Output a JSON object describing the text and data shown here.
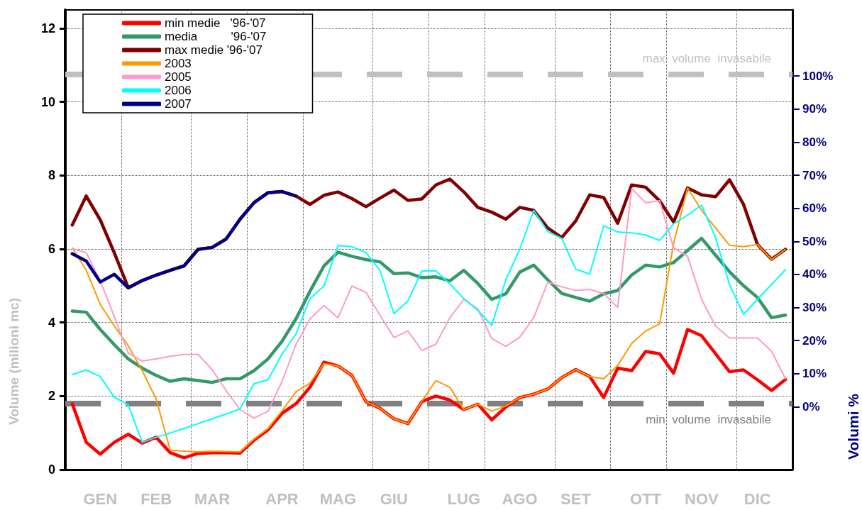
{
  "chart_data": {
    "type": "line",
    "ylabel": "Volume (milioni mc)",
    "y2label": "Volumi %",
    "categories": [
      null,
      null,
      "GEN",
      null,
      null,
      null,
      "FEB",
      null,
      null,
      null,
      "MAR",
      null,
      null,
      null,
      null,
      "APR",
      null,
      null,
      null,
      "MAG",
      null,
      null,
      null,
      "GIU",
      null,
      null,
      null,
      null,
      "LUG",
      null,
      null,
      null,
      "AGO",
      null,
      null,
      null,
      "SET",
      null,
      null,
      null,
      null,
      "OTT",
      null,
      null,
      null,
      "NOV",
      null,
      null,
      null,
      "DIC",
      null,
      null
    ],
    "ylim": [
      0,
      12.5
    ],
    "yticks": [
      0,
      2,
      4,
      6,
      8,
      10,
      12
    ],
    "y2lim": [
      -19,
      120
    ],
    "y2ticks": [
      {
        "value": 0,
        "label": "0%"
      },
      {
        "value": 10,
        "label": "10%"
      },
      {
        "value": 20,
        "label": "20%"
      },
      {
        "value": 30,
        "label": "30%"
      },
      {
        "value": 40,
        "label": "40%"
      },
      {
        "value": 50,
        "label": "50%"
      },
      {
        "value": 60,
        "label": "60%"
      },
      {
        "value": 70,
        "label": "70%"
      },
      {
        "value": 80,
        "label": "80%"
      },
      {
        "value": 90,
        "label": "90%"
      },
      {
        "value": 100,
        "label": "100%"
      }
    ],
    "grid": true,
    "legend": "top left",
    "marker": "none",
    "line_style": "solid",
    "ref_lines": [
      {
        "axis": "y",
        "value": 10.75,
        "label": "max  volume  invasabile",
        "color": "#c0c0c0",
        "line_style": "dashed"
      },
      {
        "axis": "y",
        "value": 1.8,
        "label": "min  volume  invasabile",
        "color": "#808080",
        "line_style": "dashed"
      }
    ],
    "series": [
      {
        "name": "min medie   '96-'07",
        "color": "#ff0000",
        "values": [
          1.79,
          0.74,
          0.42,
          0.74,
          0.96,
          0.72,
          0.88,
          0.46,
          0.32,
          0.44,
          0.46,
          0.46,
          0.45,
          0.8,
          1.08,
          1.53,
          1.79,
          2.24,
          2.92,
          2.82,
          2.56,
          1.85,
          1.67,
          1.38,
          1.25,
          1.85,
          2.0,
          1.89,
          1.63,
          1.78,
          1.35,
          1.7,
          1.96,
          2.05,
          2.19,
          2.5,
          2.72,
          2.53,
          1.96,
          2.76,
          2.69,
          3.21,
          3.15,
          2.62,
          3.81,
          3.64,
          3.15,
          2.66,
          2.71,
          2.44,
          2.15,
          2.45
        ]
      },
      {
        "name": "media          '96-'07",
        "color": "#339966",
        "values": [
          4.31,
          4.28,
          3.81,
          3.4,
          3.01,
          2.76,
          2.56,
          2.4,
          2.47,
          2.42,
          2.37,
          2.47,
          2.47,
          2.69,
          3.01,
          3.49,
          4.1,
          4.85,
          5.54,
          5.91,
          5.8,
          5.71,
          5.65,
          5.33,
          5.35,
          5.22,
          5.24,
          5.13,
          5.42,
          5.06,
          4.63,
          4.78,
          5.37,
          5.56,
          5.16,
          4.79,
          4.68,
          4.58,
          4.78,
          4.87,
          5.29,
          5.56,
          5.51,
          5.63,
          5.96,
          6.29,
          5.83,
          5.38,
          5.0,
          4.68,
          4.13,
          4.2
        ]
      },
      {
        "name": "max medie '96-'07",
        "color": "#800000",
        "values": [
          6.65,
          7.44,
          6.79,
          5.9,
          4.95,
          5.14,
          5.29,
          5.42,
          5.54,
          5.99,
          6.04,
          6.27,
          6.81,
          7.26,
          7.53,
          7.56,
          7.44,
          7.21,
          7.46,
          7.55,
          7.37,
          7.15,
          7.38,
          7.6,
          7.32,
          7.36,
          7.74,
          7.9,
          7.55,
          7.13,
          7.0,
          6.81,
          7.13,
          7.05,
          6.57,
          6.31,
          6.76,
          7.47,
          7.4,
          6.7,
          7.74,
          7.68,
          7.31,
          6.73,
          7.66,
          7.47,
          7.42,
          7.88,
          7.21,
          6.12,
          5.72,
          5.99
        ]
      },
      {
        "name": "2003",
        "color": "#ff9900",
        "values": [
          6.03,
          5.42,
          4.49,
          3.91,
          3.37,
          2.69,
          1.92,
          0.53,
          0.5,
          0.48,
          0.5,
          0.49,
          0.48,
          0.83,
          1.12,
          1.6,
          2.12,
          2.35,
          2.88,
          2.82,
          2.56,
          1.85,
          1.67,
          1.38,
          1.25,
          1.86,
          2.42,
          2.24,
          1.63,
          1.78,
          1.59,
          1.73,
          1.96,
          2.05,
          2.19,
          2.5,
          2.72,
          2.53,
          2.47,
          2.83,
          3.43,
          3.77,
          3.96,
          6.15,
          7.66,
          7.05,
          6.57,
          6.1,
          6.06,
          6.12,
          5.71,
          5.99
        ]
      },
      {
        "name": "2005",
        "color": "#ff99cc",
        "values": [
          6.01,
          5.9,
          5.13,
          4.17,
          3.17,
          2.95,
          3.01,
          3.08,
          3.13,
          3.13,
          2.72,
          2.15,
          1.63,
          1.4,
          1.59,
          2.4,
          3.4,
          4.1,
          4.46,
          4.13,
          4.99,
          4.82,
          4.2,
          3.59,
          3.77,
          3.24,
          3.41,
          4.13,
          4.63,
          4.37,
          3.56,
          3.35,
          3.6,
          4.13,
          5.1,
          4.97,
          4.87,
          4.9,
          4.79,
          4.41,
          7.64,
          7.26,
          7.31,
          6.03,
          5.8,
          4.63,
          3.9,
          3.58,
          3.58,
          3.58,
          3.22,
          2.47
        ]
      },
      {
        "name": "2006",
        "color": "#00ffff",
        "values": [
          2.58,
          2.71,
          2.53,
          1.97,
          1.76,
          0.74,
          0.88,
          0.99,
          1.12,
          1.25,
          1.38,
          1.51,
          1.65,
          2.34,
          2.44,
          3.14,
          3.69,
          4.65,
          4.99,
          6.09,
          6.06,
          5.9,
          5.42,
          4.24,
          4.58,
          5.4,
          5.4,
          5.05,
          4.65,
          4.33,
          3.92,
          5.16,
          5.99,
          7.05,
          6.47,
          6.29,
          5.45,
          5.32,
          6.63,
          6.46,
          6.44,
          6.38,
          6.23,
          6.68,
          6.92,
          7.19,
          6.31,
          5.03,
          4.22,
          4.63,
          5.03,
          5.44
        ]
      },
      {
        "name": "2007",
        "color": "#000080",
        "values": [
          5.87,
          5.67,
          5.1,
          5.31,
          4.94,
          5.14,
          5.29,
          5.42,
          5.54,
          5.99,
          6.04,
          6.27,
          6.81,
          7.26,
          7.53,
          7.56,
          7.44,
          null,
          null,
          null,
          null,
          null,
          null,
          null,
          null,
          null,
          null,
          null,
          null,
          null,
          null,
          null,
          null,
          null,
          null,
          null,
          null,
          null,
          null,
          null,
          null,
          null,
          null,
          null,
          null,
          null,
          null,
          null,
          null,
          null,
          null,
          null
        ]
      }
    ]
  }
}
